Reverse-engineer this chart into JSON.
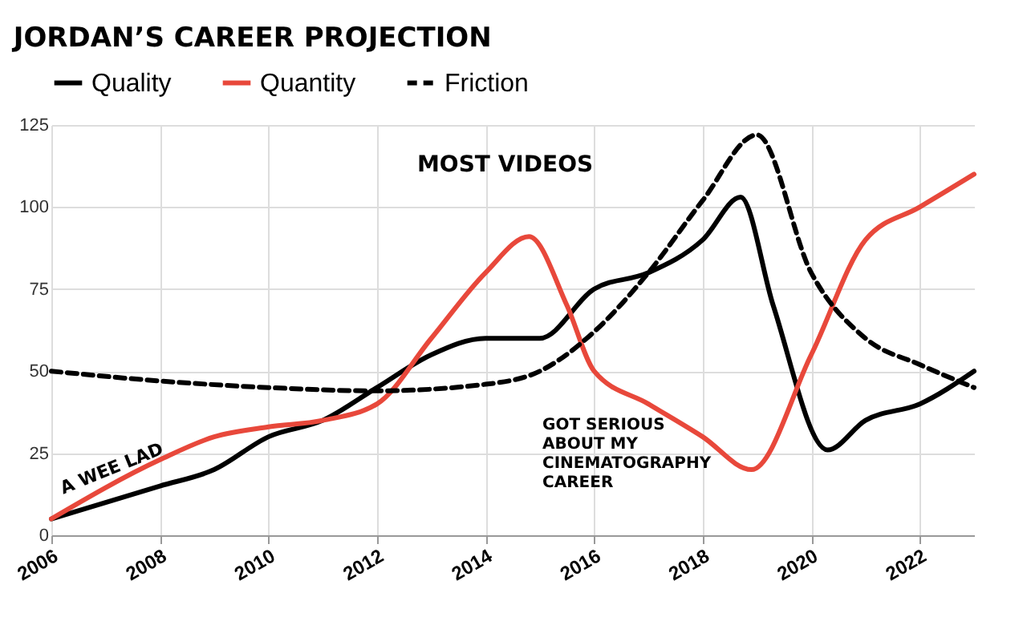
{
  "chart_data": {
    "type": "line",
    "title": "JORDAN’S CAREER PROJECTION",
    "annotations": [
      "MOST VIDEOS",
      "GOT SERIOUS\nABOUT MY\nCINEMATOGRAPHY\nCAREER",
      "A WEE LAD"
    ],
    "series": [
      {
        "name": "Quality",
        "color": "#000000",
        "line_style": "solid",
        "x": [
          2006,
          2007,
          2008,
          2009,
          2010,
          2011,
          2012,
          2013,
          2014,
          2015,
          2016,
          2017,
          2018,
          2018.7,
          2019.3,
          2020.3,
          2021,
          2022,
          2023
        ],
        "values": [
          5,
          10,
          15,
          20,
          30,
          35,
          45,
          55,
          60,
          60,
          75,
          80,
          90,
          103,
          70,
          26,
          35,
          40,
          50
        ]
      },
      {
        "name": "Quantity",
        "color": "#e8483b",
        "line_style": "solid",
        "x": [
          2006,
          2008,
          2009,
          2010,
          2011,
          2012,
          2013,
          2014,
          2014.8,
          2015.5,
          2016,
          2017,
          2018,
          2018.9,
          2020,
          2021,
          2022,
          2023
        ],
        "values": [
          5,
          23,
          30,
          33,
          35,
          40,
          60,
          80,
          91,
          70,
          50,
          40,
          30,
          20,
          55,
          90,
          100,
          110
        ]
      },
      {
        "name": "Friction",
        "color": "#000000",
        "line_style": "dashed",
        "x": [
          2006,
          2008,
          2010,
          2012,
          2014,
          2015,
          2016,
          2017,
          2018,
          2019,
          2020,
          2021,
          2022,
          2023
        ],
        "values": [
          50,
          47,
          45,
          44,
          46,
          50,
          62,
          80,
          102,
          122,
          80,
          60,
          52,
          45
        ]
      }
    ],
    "xlim": [
      2006,
      2023
    ],
    "xticks": [
      2006,
      2008,
      2010,
      2012,
      2014,
      2016,
      2018,
      2020,
      2022
    ],
    "ylim": [
      0,
      125
    ],
    "yticks": [
      0,
      25,
      50,
      75,
      100,
      125
    ],
    "grid": true,
    "legend": "top",
    "marker": "none"
  }
}
